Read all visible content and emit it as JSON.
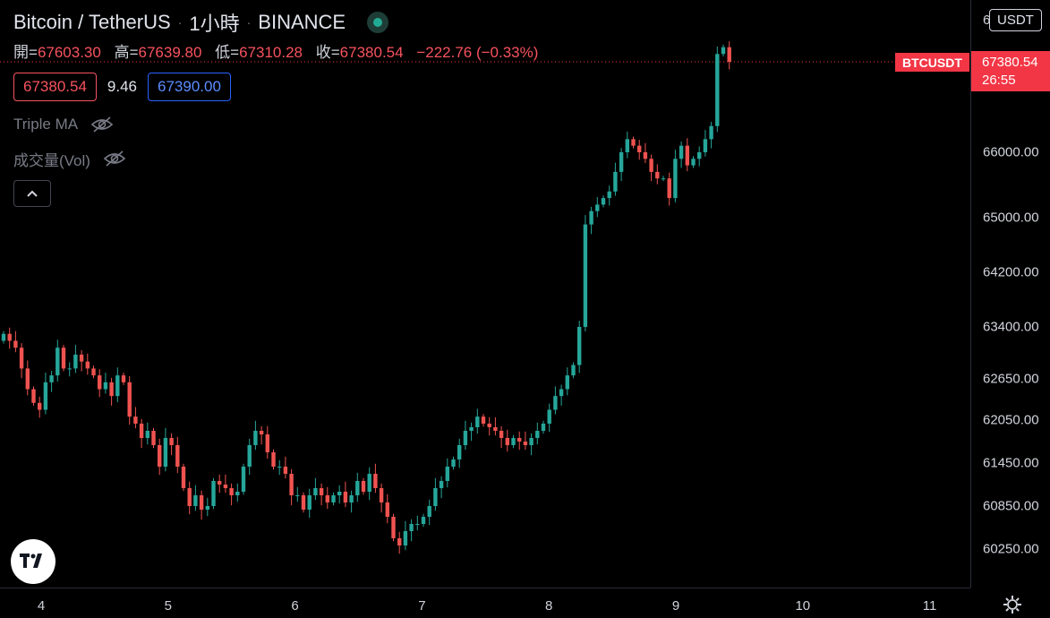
{
  "header": {
    "pair": "Bitcoin / TetherUS",
    "interval": "1小時",
    "exchange": "BINANCE",
    "separator": "·"
  },
  "ohlc": {
    "open_label": "開=",
    "open": "67603.30",
    "high_label": "高=",
    "high": "67639.80",
    "low_label": "低=",
    "low": "67310.28",
    "close_label": "收=",
    "close": "67380.54",
    "change": "−222.76 (−0.33%)"
  },
  "quote": {
    "sell": "67380.54",
    "spread": "9.46",
    "buy": "67390.00"
  },
  "indicators": [
    {
      "name": "Triple MA",
      "icon": "eye-off-icon"
    },
    {
      "name": "成交量(Vol)",
      "icon": "eye-off-icon"
    }
  ],
  "collapse_icon": "chevron-up-icon",
  "price_axis": {
    "currency": "USDT",
    "clipped_label": "6",
    "symbol_tag": "BTCUSDT",
    "last_price": "67380.54",
    "countdown": "26:55"
  },
  "colors": {
    "up": "#26a69a",
    "down": "#ef5350",
    "background": "#000000",
    "price_tag": "#f23645"
  },
  "chart_data": {
    "type": "candlestick",
    "title": "Bitcoin / TetherUS · 1小時 · BINANCE",
    "xlabel": "",
    "ylabel": "",
    "x_ticks": [
      "4",
      "5",
      "6",
      "7",
      "8",
      "9",
      "10",
      "11"
    ],
    "y_ticks": [
      60250,
      60850,
      61450,
      62050,
      62650,
      63400,
      64200,
      65000,
      66000
    ],
    "y_tick_labels": [
      "60250.00",
      "60850.00",
      "61450.00",
      "62050.00",
      "62650.00",
      "63400.00",
      "64200.00",
      "65000.00",
      "66000.00"
    ],
    "ylim": [
      60030,
      67900
    ],
    "last_price": 67380.54,
    "grid": false,
    "approximate_closes": [
      63300,
      63200,
      63100,
      62800,
      62500,
      62300,
      62200,
      62600,
      62700,
      63100,
      62800,
      62800,
      63000,
      62900,
      62800,
      62700,
      62500,
      62600,
      62400,
      62700,
      62600,
      62100,
      62000,
      61800,
      61900,
      61700,
      61400,
      61800,
      61700,
      61400,
      61100,
      60850,
      61000,
      60800,
      60850,
      61200,
      61150,
      61100,
      61000,
      61050,
      61400,
      61700,
      61900,
      61850,
      61600,
      61400,
      61400,
      61300,
      61000,
      61000,
      60800,
      61000,
      61100,
      61000,
      60900,
      61000,
      61050,
      60900,
      61000,
      61200,
      61050,
      61300,
      61100,
      60900,
      60700,
      60400,
      60300,
      60500,
      60600,
      60600,
      60700,
      60850,
      61100,
      61200,
      61400,
      61500,
      61700,
      61900,
      61950,
      62100,
      62000,
      61950,
      61900,
      61800,
      61700,
      61800,
      61750,
      61700,
      61800,
      61900,
      62000,
      62200,
      62400,
      62500,
      62700,
      62850,
      63400,
      64900,
      65100,
      65200,
      65300,
      65400,
      65700,
      66000,
      66200,
      66100,
      66000,
      65900,
      65700,
      65600,
      65600,
      65300,
      65900,
      66100,
      65800,
      65900,
      66000,
      66200,
      66400,
      67500,
      67603,
      67380
    ]
  }
}
